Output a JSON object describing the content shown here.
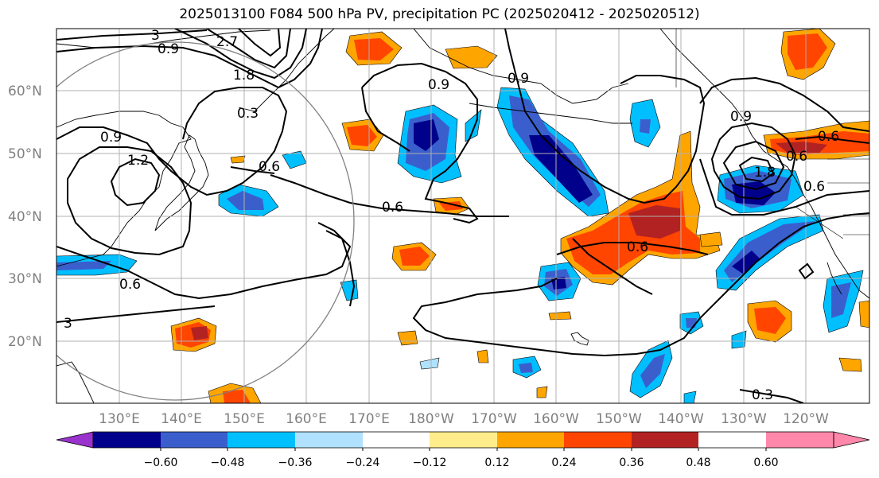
{
  "title": "2025013100 F084 500 hPa PV, precipitation PC (2025020412 - 2025020512)",
  "lat_labels": [
    "60°N",
    "50°N",
    "40°N",
    "30°N",
    "20°N"
  ],
  "lon_labels": [
    "130°E",
    "140°E",
    "150°E",
    "160°E",
    "170°E",
    "180°W",
    "170°W",
    "160°W",
    "150°W",
    "140°W",
    "130°W",
    "120°W"
  ],
  "contour_labels": [
    "3",
    "2.7",
    "0.9",
    "1.8",
    "0.3",
    "0.9",
    "0.9",
    "0.9",
    "1.2",
    "0.6",
    "0.6",
    "0.6",
    "0.6",
    "3",
    "0.9",
    "1.8",
    "0.6",
    "0.6",
    "0.3",
    "0.6"
  ],
  "colorbar": {
    "colors": [
      "#9a32cd",
      "#00008b",
      "#3a5fcd",
      "#00bfff",
      "#b0e2ff",
      "#ffffff",
      "#ffec8b",
      "#ffa500",
      "#ff4500",
      "#b22222",
      "#ff88aa"
    ],
    "tick_labels": [
      "−0.60",
      "−0.48",
      "−0.36",
      "−0.24",
      "−0.12",
      "0.12",
      "0.24",
      "0.36",
      "0.48",
      "0.60"
    ]
  },
  "colors": {
    "negative_strong": "#00008b",
    "negative_mid": "#3a5fcd",
    "negative_light": "#00bfff",
    "negative_faint": "#b0e2ff",
    "positive_faint": "#ffec8b",
    "positive_light": "#ffa500",
    "positive_mid": "#ff4500",
    "positive_strong": "#b22222",
    "grid": "#b0b0b0",
    "contour": "#000000",
    "circle": "#808080"
  }
}
